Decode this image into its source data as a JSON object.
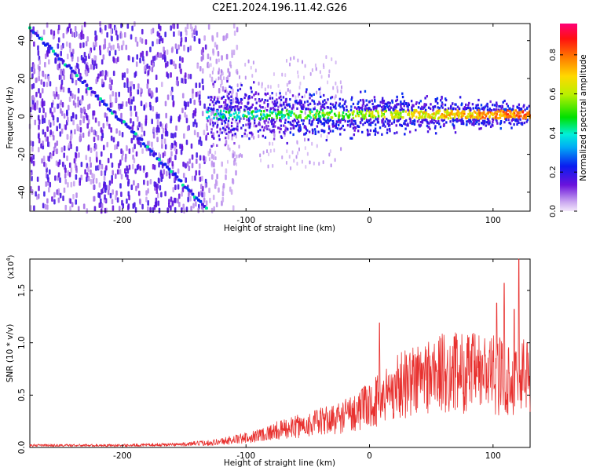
{
  "title": "C2E1.2024.196.11.42.G26",
  "chart_data": [
    {
      "type": "heatmap",
      "xlabel": "Height of straight line (km)",
      "ylabel": "Frequency (Hz)",
      "xlim": [
        -275,
        130
      ],
      "ylim": [
        -50,
        49
      ],
      "xticks": [
        -200,
        -100,
        0,
        100
      ],
      "yticks": [
        -40,
        -20,
        0,
        20,
        40
      ],
      "colorbar": {
        "label": "Normalized spectral amplitude",
        "range": [
          0.0,
          0.96
        ],
        "ticks": [
          "0.0",
          "0.2",
          "0.4",
          "0.6",
          "0.8"
        ],
        "tick_values": [
          0.0,
          0.2,
          0.4,
          0.6,
          0.8
        ]
      },
      "diagonal_trace": {
        "x_start": -275,
        "y_start": 47,
        "x_end": -132,
        "y_end": -48
      },
      "centered_band": {
        "x_start": -132,
        "x_end": 130,
        "center_hz": 1
      }
    },
    {
      "type": "line",
      "xlabel": "Height of straight line (km)",
      "ylabel": "SNR (10 * v/v)",
      "y_multiplier": "(x10",
      "y_multiplier_exp": "4",
      "xlim": [
        -275,
        130
      ],
      "ylim": [
        0.0,
        1.8
      ],
      "xticks": [
        -200,
        -100,
        0,
        100
      ],
      "yticks": [
        "0.0",
        "0.5",
        "1.0",
        "1.5"
      ],
      "ytick_values": [
        0.0,
        0.5,
        1.0,
        1.5
      ],
      "color": "#e8312f",
      "envelope": {
        "x": [
          -275,
          -200,
          -150,
          -125,
          -100,
          -75,
          -50,
          -25,
          0,
          25,
          50,
          75,
          100,
          115,
          130
        ],
        "y": [
          0.02,
          0.02,
          0.03,
          0.05,
          0.09,
          0.16,
          0.22,
          0.28,
          0.4,
          0.6,
          0.7,
          0.72,
          0.7,
          0.65,
          0.73
        ]
      },
      "peaks": [
        {
          "x": 8,
          "y": 1.19
        },
        {
          "x": 103,
          "y": 1.38
        },
        {
          "x": 109,
          "y": 1.57
        },
        {
          "x": 117,
          "y": 1.32
        },
        {
          "x": 121,
          "y": 1.8
        }
      ]
    }
  ]
}
